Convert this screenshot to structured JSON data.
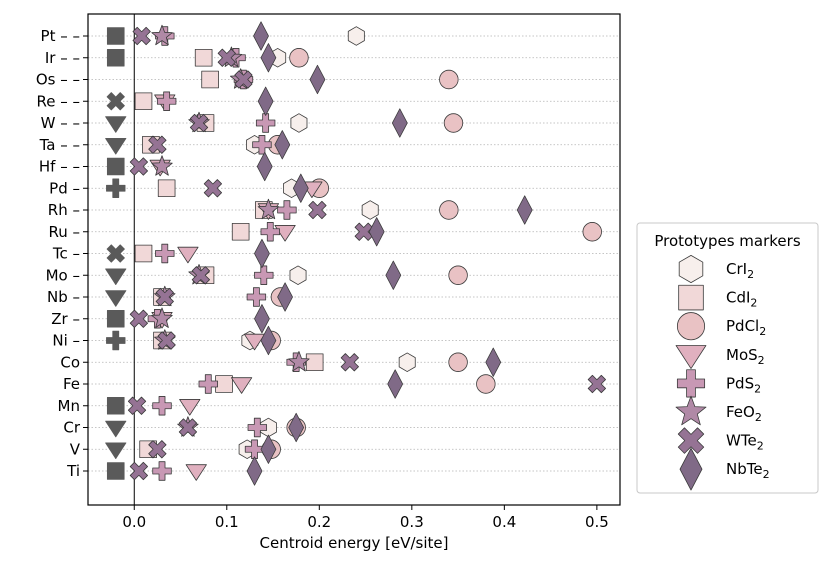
{
  "chart_data": {
    "type": "scatter",
    "title": "",
    "xlabel": "Centroid energy [eV/site]",
    "ylabel": "",
    "xlim": [
      -0.05,
      0.525
    ],
    "x_ticks": [
      0.0,
      0.1,
      0.2,
      0.3,
      0.4,
      0.5
    ],
    "x_tick_labels": [
      "0.0",
      "0.1",
      "0.2",
      "0.3",
      "0.4",
      "0.5"
    ],
    "zero_line": 0.0,
    "grid": "horizontal dotted",
    "legend_position": "outside-right",
    "legend_title": "Prototypes markers",
    "categories": [
      "Pt",
      "Ir",
      "Os",
      "Re",
      "W",
      "Ta",
      "Hf",
      "Pd",
      "Rh",
      "Ru",
      "Tc",
      "Mo",
      "Nb",
      "Zr",
      "Ni",
      "Co",
      "Fe",
      "Mn",
      "Cr",
      "V",
      "Ti"
    ],
    "category_labels": [
      "Pt – –",
      "Ir – –",
      "Os – –",
      "Re – –",
      "W – –",
      "Ta – –",
      "Hf – –",
      "Pd –",
      "Rh –",
      "Ru –",
      "Tc –",
      "Mo –",
      "Nb –",
      "Zr –",
      "Ni –",
      "Co",
      "Fe",
      "Mn",
      "Cr",
      "V",
      "Ti"
    ],
    "ground_state_x": -0.02,
    "ground_state_color": "#5a5a5a",
    "ground_state_markers": [
      "square",
      "square",
      "none",
      "cross",
      "triangle",
      "triangle",
      "square",
      "plus",
      "none",
      "none",
      "cross",
      "triangle",
      "triangle",
      "square",
      "plus",
      "none",
      "none",
      "square",
      "triangle",
      "triangle",
      "square"
    ],
    "series": [
      {
        "name": "CrI$_2$",
        "label_main": "CrI",
        "label_sub": "2",
        "marker": "hexagon",
        "color": "#f7efec",
        "values": [
          0.24,
          0.155,
          null,
          null,
          0.178,
          0.13,
          null,
          0.17,
          0.255,
          null,
          null,
          0.177,
          null,
          null,
          0.125,
          0.295,
          null,
          null,
          0.145,
          0.122,
          null
        ]
      },
      {
        "name": "CdI$_2$",
        "label_main": "CdI",
        "label_sub": "2",
        "marker": "square",
        "color": "#f1d8d8",
        "values": [
          null,
          0.075,
          0.082,
          0.01,
          0.077,
          0.018,
          null,
          0.035,
          0.14,
          0.115,
          0.01,
          0.077,
          0.03,
          null,
          0.03,
          0.195,
          0.097,
          null,
          null,
          0.015,
          null
        ]
      },
      {
        "name": "PdCl$_2$",
        "label_main": "PdCl",
        "label_sub": "2",
        "marker": "circle",
        "color": "#e9c2c4",
        "values": [
          null,
          0.178,
          0.34,
          null,
          0.345,
          0.155,
          null,
          0.2,
          0.34,
          0.495,
          null,
          0.35,
          0.158,
          null,
          0.148,
          0.35,
          0.38,
          null,
          0.175,
          0.148,
          null
        ]
      },
      {
        "name": "MoS$_2$",
        "label_main": "MoS",
        "label_sub": "2",
        "marker": "triangle",
        "color": "#e0b0bf",
        "values": [
          null,
          null,
          null,
          0.033,
          null,
          null,
          0.028,
          0.192,
          0.145,
          0.163,
          0.058,
          null,
          null,
          0.03,
          0.13,
          null,
          0.116,
          0.06,
          null,
          null,
          0.067
        ]
      },
      {
        "name": "PdS$_2$",
        "label_main": "PdS",
        "label_sub": "2",
        "marker": "plus",
        "color": "#c898b4",
        "values": [
          0.033,
          0.11,
          0.118,
          0.035,
          0.142,
          0.138,
          null,
          null,
          0.165,
          0.147,
          0.033,
          0.14,
          0.132,
          0.025,
          null,
          0.175,
          0.08,
          0.03,
          0.133,
          0.13,
          0.03
        ]
      },
      {
        "name": "FeO$_2$",
        "label_main": "FeO",
        "label_sub": "2",
        "marker": "star",
        "color": "#b089a6",
        "values": [
          0.03,
          0.105,
          0.115,
          null,
          0.07,
          null,
          0.03,
          null,
          0.145,
          null,
          null,
          0.07,
          0.033,
          0.03,
          0.033,
          0.178,
          null,
          null,
          0.058,
          null,
          null
        ]
      },
      {
        "name": "WTe$_2$",
        "label_main": "WTe",
        "label_sub": "2",
        "marker": "cross",
        "color": "#957394",
        "values": [
          0.008,
          0.1,
          0.118,
          null,
          0.07,
          0.025,
          0.005,
          0.085,
          0.198,
          0.248,
          null,
          0.072,
          0.033,
          0.005,
          0.035,
          0.233,
          0.5,
          0.003,
          0.058,
          0.025,
          0.005
        ]
      },
      {
        "name": "NbTe$_2$",
        "label_main": "NbTe",
        "label_sub": "2",
        "marker": "diamond",
        "color": "#806a87",
        "values": [
          0.137,
          0.145,
          0.198,
          0.142,
          0.287,
          0.16,
          0.141,
          0.18,
          0.422,
          0.262,
          0.138,
          0.28,
          0.163,
          0.138,
          0.145,
          0.388,
          0.282,
          null,
          0.175,
          0.145,
          0.13
        ]
      }
    ]
  }
}
